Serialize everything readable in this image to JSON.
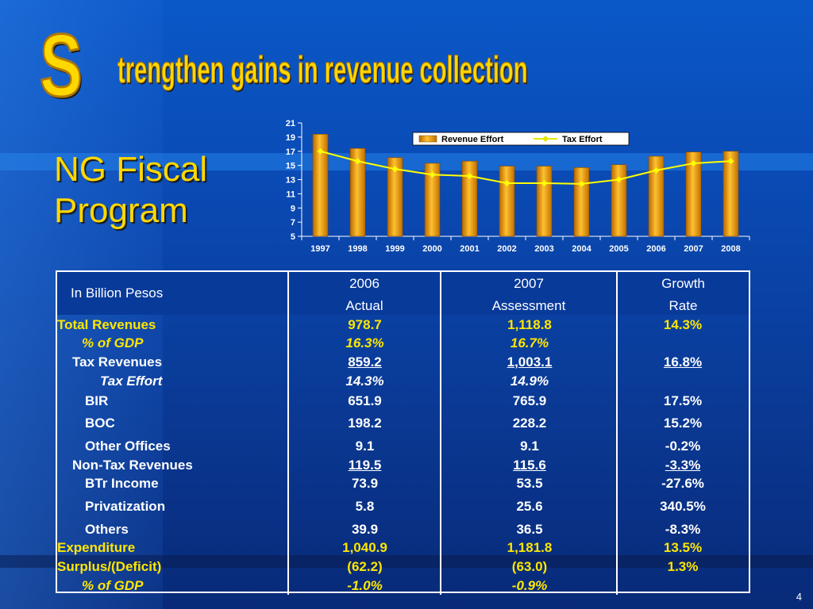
{
  "title": {
    "initial": "S",
    "rest": "trengthen gains in revenue collection"
  },
  "heading": {
    "line1": "NG Fiscal",
    "line2": "Program"
  },
  "chart_data": {
    "type": "bar",
    "categories": [
      "1997",
      "1998",
      "1999",
      "2000",
      "2001",
      "2002",
      "2003",
      "2004",
      "2005",
      "2006",
      "2007",
      "2008"
    ],
    "series": [
      {
        "name": "Revenue Effort",
        "kind": "bar",
        "color": "#f0a000",
        "values": [
          19.4,
          17.4,
          16.1,
          15.3,
          15.6,
          14.9,
          14.9,
          14.7,
          15.1,
          16.3,
          16.9,
          17.0
        ]
      },
      {
        "name": "Tax Effort",
        "kind": "line",
        "color": "#ffff00",
        "values": [
          17.0,
          15.6,
          14.5,
          13.7,
          13.5,
          12.5,
          12.5,
          12.4,
          13.0,
          14.3,
          15.3,
          15.6
        ]
      }
    ],
    "ylim": [
      5,
      21
    ],
    "yticks": [
      5,
      7,
      9,
      11,
      13,
      15,
      17,
      19,
      21
    ],
    "legend": "top-right"
  },
  "table": {
    "header": {
      "label": "In Billion Pesos",
      "col1": [
        "2006",
        "Actual"
      ],
      "col2": [
        "2007",
        "Assessment"
      ],
      "col3": [
        "Growth",
        "Rate"
      ]
    },
    "rows": [
      {
        "label": "Total Revenues",
        "v1": "978.7",
        "v2": "1,118.8",
        "v3": "14.3%"
      },
      {
        "label": "% of GDP",
        "v1": "16.3%",
        "v2": "16.7%",
        "v3": ""
      },
      {
        "label": "Tax Revenues",
        "v1": "859.2",
        "v2": "1,003.1",
        "v3": "16.8%"
      },
      {
        "label": "Tax Effort",
        "v1": "14.3%",
        "v2": "14.9%",
        "v3": ""
      },
      {
        "label": "BIR",
        "v1": "651.9",
        "v2": "765.9",
        "v3": "17.5%"
      },
      {
        "label": "BOC",
        "v1": "198.2",
        "v2": "228.2",
        "v3": "15.2%"
      },
      {
        "label": "Other Offices",
        "v1": "9.1",
        "v2": "9.1",
        "v3": "-0.2%"
      },
      {
        "label": "Non-Tax Revenues",
        "v1": "119.5",
        "v2": "115.6",
        "v3": "-3.3%"
      },
      {
        "label": "BTr Income",
        "v1": "73.9",
        "v2": "53.5",
        "v3": "-27.6%"
      },
      {
        "label": "Privatization",
        "v1": "5.8",
        "v2": "25.6",
        "v3": "340.5%"
      },
      {
        "label": "Others",
        "v1": "39.9",
        "v2": "36.5",
        "v3": "-8.3%"
      },
      {
        "label": "Expenditure",
        "v1": "1,040.9",
        "v2": "1,181.8",
        "v3": "13.5%"
      },
      {
        "label": "Surplus/(Deficit)",
        "v1": "(62.2)",
        "v2": "(63.0)",
        "v3": "1.3%"
      },
      {
        "label": "% of GDP",
        "v1": "-1.0%",
        "v2": "-0.9%",
        "v3": ""
      }
    ]
  },
  "page_number": "4"
}
